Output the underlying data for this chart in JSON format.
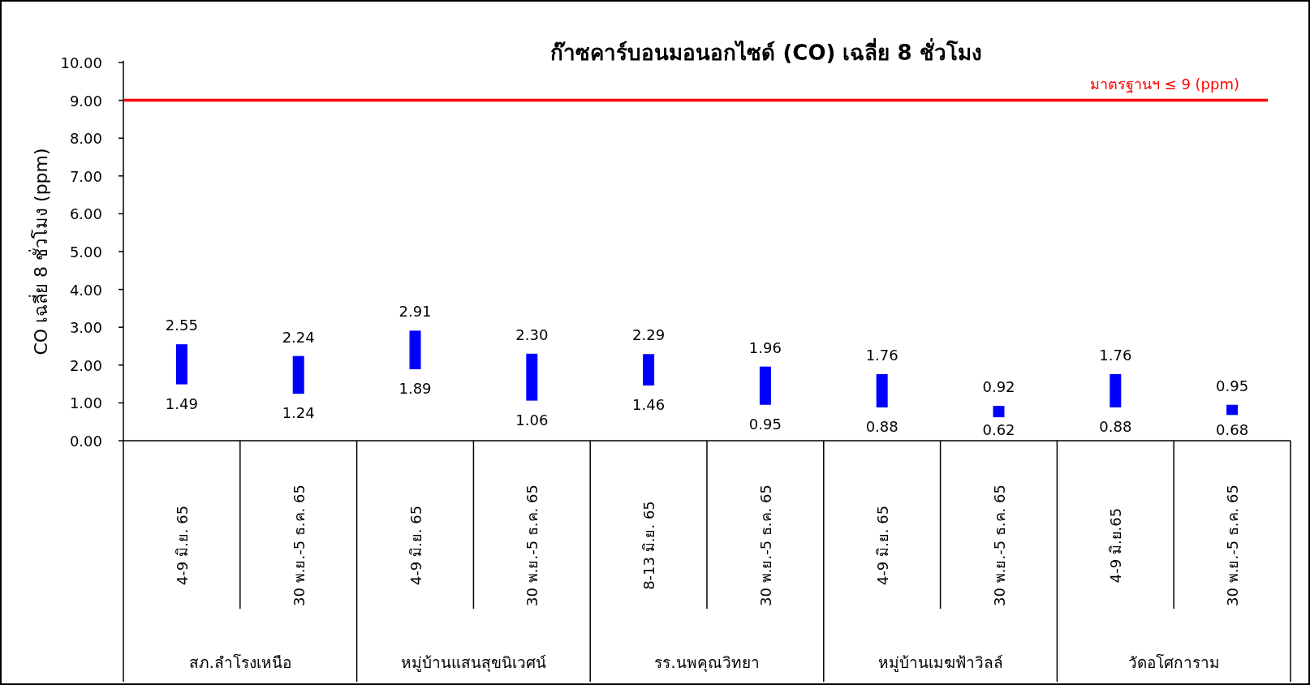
{
  "chart_data": {
    "type": "bar",
    "title": "ก๊าซคาร์บอนมอนอกไซด์ (CO) เฉลี่ย 8 ชั่วโมง",
    "ylabel": "CO เฉลี่ย 8 ชั่วโมง (ppm)",
    "categories": [
      "4-9 มิ.ย. 65",
      "30 พ.ย.-5 ธ.ค. 65",
      "4-9 มิ.ย. 65",
      "30 พ.ย.-5 ธ.ค. 65",
      "8-13 มิ.ย. 65",
      "30 พ.ย.-5 ธ.ค. 65",
      "4-9 มิ.ย. 65",
      "30 พ.ย.-5 ธ.ค. 65",
      "4-9 มิ.ย.65",
      "30 พ.ย.-5 ธ.ค. 65"
    ],
    "base": [
      1.49,
      1.24,
      1.89,
      1.06,
      1.46,
      0.95,
      0.88,
      0.62,
      0.88,
      0.68
    ],
    "values": [
      1.06,
      1.0,
      1.02,
      1.24,
      0.83,
      1.01,
      0.88,
      0.3,
      0.88,
      0.27
    ],
    "value_labels": [
      "2.55",
      "2.24",
      "2.91",
      "2.30",
      "2.29",
      "1.96",
      "1.76",
      "0.92",
      "1.76",
      "0.95"
    ],
    "color": "#0000ff",
    "ylim": [
      0,
      10
    ],
    "yticks": [
      {
        "value": 0,
        "label": "0.00"
      },
      {
        "value": 1,
        "label": "1.00"
      },
      {
        "value": 2,
        "label": "2.00"
      },
      {
        "value": 3,
        "label": "3.00"
      },
      {
        "value": 4,
        "label": "4.00"
      },
      {
        "value": 5,
        "label": "5.00"
      },
      {
        "value": 6,
        "label": "6.00"
      },
      {
        "value": 7,
        "label": "7.00"
      },
      {
        "value": 8,
        "label": "8.00"
      },
      {
        "value": 9,
        "label": "9.00"
      },
      {
        "value": 10,
        "label": "10.00"
      }
    ],
    "ref_lines": [
      {
        "axis": "y",
        "value": 9,
        "label": "มาตรฐานฯ ≤ 9 (ppm)",
        "color": "#ff0000"
      }
    ],
    "annotations": [
      "1.49",
      "1.24",
      "1.89",
      "1.06",
      "1.46",
      "0.95",
      "0.88",
      "0.62",
      "0.88",
      "0.68",
      "สภ.ลำโรงเหนือ",
      "หมู่บ้านแสนสุขนิเวศน์",
      "รร.นพคุณวิทยา",
      "หมู่บ้านเมฆฟ้าวิลล์",
      "วัดอโศการาม"
    ],
    "grid": false
  }
}
